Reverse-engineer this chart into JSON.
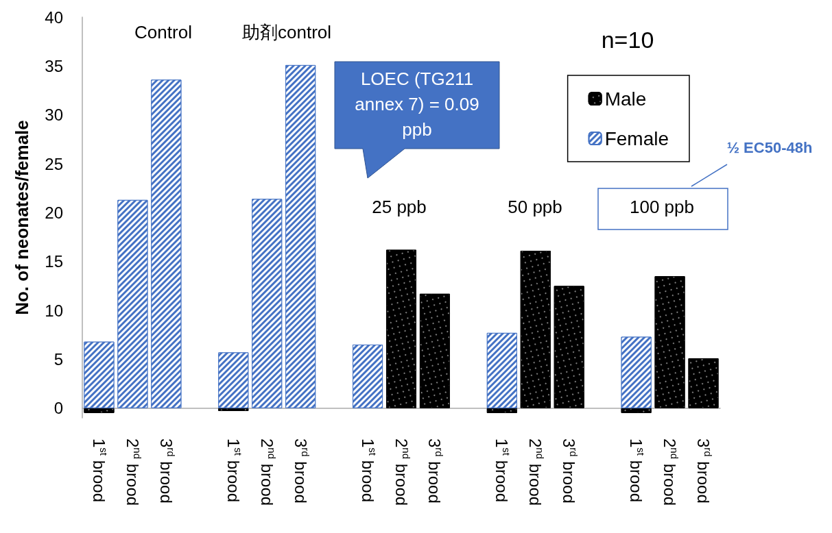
{
  "chart_data": {
    "type": "bar",
    "ylabel": "No. of neonates/female",
    "categories": [
      "1$^{st}$ brood",
      "2$^{nd}$ brood",
      "3$^{rd}$ brood",
      null,
      "1$^{st}$ brood",
      "2$^{nd}$ brood",
      "3$^{rd}$ brood",
      null,
      "1$^{st}$ brood",
      "2$^{nd}$ brood",
      "3$^{rd}$ brood",
      null,
      "1$^{st}$ brood",
      "2$^{nd}$ brood",
      "3$^{rd}$ brood",
      null,
      "1$^{st}$ brood",
      "2$^{nd}$ brood",
      "3$^{rd}$ brood"
    ],
    "series": [
      {
        "name": "Male",
        "color": "#000000",
        "values": [
          -0.5,
          null,
          null,
          null,
          -0.3,
          null,
          null,
          null,
          null,
          16.2,
          11.7,
          null,
          -0.5,
          16.1,
          12.5,
          null,
          -0.5,
          13.5,
          5.1
        ]
      },
      {
        "name": "Female",
        "color": "#4472c4",
        "values": [
          6.8,
          21.3,
          33.6,
          null,
          5.7,
          21.4,
          35.1,
          null,
          6.5,
          null,
          null,
          null,
          7.7,
          null,
          null,
          null,
          7.3,
          null,
          null
        ]
      }
    ],
    "stacked": true,
    "ylim": [
      -1,
      40
    ],
    "yticks": [
      0,
      5,
      10,
      15,
      20,
      25,
      30,
      35,
      40
    ],
    "grid": false,
    "legend": "top right",
    "annotations": [
      "Control",
      "助剤control",
      "25 ppb",
      "50 ppb",
      "100 ppb",
      "n=10",
      "LOEC (TG211 annex 7) = 0.09 ppb",
      "½ EC50-48h"
    ]
  }
}
